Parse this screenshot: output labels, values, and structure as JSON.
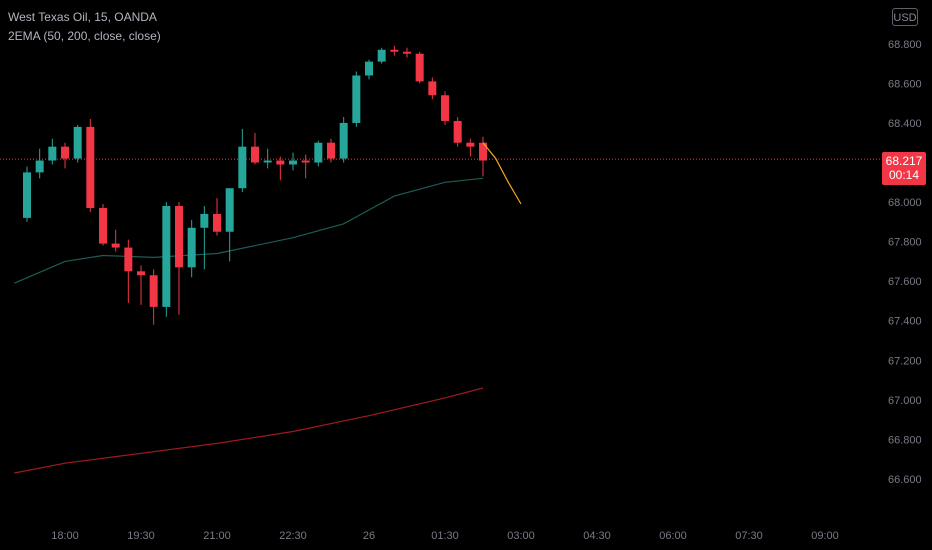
{
  "header": {
    "title": "West Texas Oil, 15, OANDA",
    "indicator": "2EMA (50, 200, close, close)",
    "currency": "USD"
  },
  "last_price": {
    "value": "68.217",
    "countdown": "00:14"
  },
  "colors": {
    "background": "#000000",
    "up": "#26a69a",
    "down": "#f23645",
    "ema50": "#1b5e57",
    "ema200": "#a01a1e",
    "projection": "#f5a623",
    "axis_text": "#787b86"
  },
  "chart_data": {
    "type": "candlestick",
    "y_range": [
      66.5,
      68.95
    ],
    "y_ticks": [
      "68.800",
      "68.600",
      "68.400",
      "68.200",
      "68.000",
      "67.800",
      "67.600",
      "67.400",
      "67.200",
      "67.000",
      "66.800",
      "66.600"
    ],
    "x_ticks": [
      "18:00",
      "19:30",
      "21:00",
      "22:30",
      "26",
      "01:30",
      "03:00",
      "04:30",
      "06:00",
      "07:30",
      "09:00"
    ],
    "candles": [
      {
        "t": "17:15",
        "o": 67.92,
        "h": 68.18,
        "l": 67.9,
        "c": 68.15
      },
      {
        "t": "17:30",
        "o": 68.15,
        "h": 68.27,
        "l": 68.12,
        "c": 68.21
      },
      {
        "t": "17:45",
        "o": 68.21,
        "h": 68.32,
        "l": 68.19,
        "c": 68.28
      },
      {
        "t": "18:00",
        "o": 68.28,
        "h": 68.3,
        "l": 68.17,
        "c": 68.22
      },
      {
        "t": "18:15",
        "o": 68.22,
        "h": 68.39,
        "l": 68.2,
        "c": 68.38
      },
      {
        "t": "18:30",
        "o": 68.38,
        "h": 68.42,
        "l": 67.95,
        "c": 67.97
      },
      {
        "t": "18:45",
        "o": 67.97,
        "h": 67.99,
        "l": 67.78,
        "c": 67.79
      },
      {
        "t": "19:00",
        "o": 67.79,
        "h": 67.86,
        "l": 67.75,
        "c": 67.77
      },
      {
        "t": "19:15",
        "o": 67.77,
        "h": 67.81,
        "l": 67.49,
        "c": 67.65
      },
      {
        "t": "19:30",
        "o": 67.65,
        "h": 67.68,
        "l": 67.48,
        "c": 67.63
      },
      {
        "t": "19:45",
        "o": 67.63,
        "h": 67.66,
        "l": 67.38,
        "c": 67.47
      },
      {
        "t": "20:00",
        "o": 67.47,
        "h": 68.0,
        "l": 67.42,
        "c": 67.98
      },
      {
        "t": "20:15",
        "o": 67.98,
        "h": 68.0,
        "l": 67.43,
        "c": 67.67
      },
      {
        "t": "20:30",
        "o": 67.67,
        "h": 67.91,
        "l": 67.62,
        "c": 67.87
      },
      {
        "t": "20:45",
        "o": 67.87,
        "h": 67.98,
        "l": 67.66,
        "c": 67.94
      },
      {
        "t": "21:00",
        "o": 67.94,
        "h": 68.02,
        "l": 67.83,
        "c": 67.85
      },
      {
        "t": "21:15",
        "o": 67.85,
        "h": 68.07,
        "l": 67.7,
        "c": 68.07
      },
      {
        "t": "21:30",
        "o": 68.07,
        "h": 68.37,
        "l": 68.05,
        "c": 68.28
      },
      {
        "t": "21:45",
        "o": 68.28,
        "h": 68.35,
        "l": 68.19,
        "c": 68.2
      },
      {
        "t": "22:00",
        "o": 68.2,
        "h": 68.27,
        "l": 68.17,
        "c": 68.21
      },
      {
        "t": "22:15",
        "o": 68.21,
        "h": 68.23,
        "l": 68.11,
        "c": 68.19
      },
      {
        "t": "22:30",
        "o": 68.19,
        "h": 68.25,
        "l": 68.16,
        "c": 68.21
      },
      {
        "t": "22:45",
        "o": 68.21,
        "h": 68.24,
        "l": 68.12,
        "c": 68.2
      },
      {
        "t": "23:00",
        "o": 68.2,
        "h": 68.31,
        "l": 68.18,
        "c": 68.3
      },
      {
        "t": "23:15",
        "o": 68.3,
        "h": 68.32,
        "l": 68.2,
        "c": 68.22
      },
      {
        "t": "23:30",
        "o": 68.22,
        "h": 68.43,
        "l": 68.2,
        "c": 68.4
      },
      {
        "t": "23:45",
        "o": 68.4,
        "h": 68.66,
        "l": 68.38,
        "c": 68.64
      },
      {
        "t": "00:00",
        "o": 68.64,
        "h": 68.72,
        "l": 68.62,
        "c": 68.71
      },
      {
        "t": "00:15",
        "o": 68.71,
        "h": 68.78,
        "l": 68.7,
        "c": 68.77
      },
      {
        "t": "00:30",
        "o": 68.77,
        "h": 68.79,
        "l": 68.74,
        "c": 68.76
      },
      {
        "t": "00:45",
        "o": 68.76,
        "h": 68.78,
        "l": 68.73,
        "c": 68.75
      },
      {
        "t": "01:00",
        "o": 68.75,
        "h": 68.76,
        "l": 68.6,
        "c": 68.61
      },
      {
        "t": "01:15",
        "o": 68.61,
        "h": 68.63,
        "l": 68.52,
        "c": 68.54
      },
      {
        "t": "01:30",
        "o": 68.54,
        "h": 68.56,
        "l": 68.39,
        "c": 68.41
      },
      {
        "t": "01:45",
        "o": 68.41,
        "h": 68.43,
        "l": 68.28,
        "c": 68.3
      },
      {
        "t": "02:00",
        "o": 68.3,
        "h": 68.32,
        "l": 68.23,
        "c": 68.28
      },
      {
        "t": "02:15",
        "o": 68.3,
        "h": 68.33,
        "l": 68.13,
        "c": 68.21
      }
    ],
    "ema50": [
      {
        "t": "17:00",
        "v": 67.59
      },
      {
        "t": "18:00",
        "v": 67.7
      },
      {
        "t": "18:45",
        "v": 67.73
      },
      {
        "t": "19:45",
        "v": 67.72
      },
      {
        "t": "21:00",
        "v": 67.74
      },
      {
        "t": "22:30",
        "v": 67.82
      },
      {
        "t": "23:30",
        "v": 67.89
      },
      {
        "t": "00:30",
        "v": 68.03
      },
      {
        "t": "01:30",
        "v": 68.1
      },
      {
        "t": "02:15",
        "v": 68.12
      }
    ],
    "ema200": [
      {
        "t": "17:00",
        "v": 66.63
      },
      {
        "t": "18:00",
        "v": 66.68
      },
      {
        "t": "19:30",
        "v": 66.73
      },
      {
        "t": "21:00",
        "v": 66.78
      },
      {
        "t": "22:30",
        "v": 66.84
      },
      {
        "t": "00:00",
        "v": 66.92
      },
      {
        "t": "01:30",
        "v": 67.01
      },
      {
        "t": "02:15",
        "v": 67.06
      }
    ],
    "projection": [
      {
        "t": "02:15",
        "v": 68.3
      },
      {
        "t": "02:30",
        "v": 68.22
      },
      {
        "t": "02:45",
        "v": 68.1
      },
      {
        "t": "03:00",
        "v": 67.99
      }
    ],
    "last_price": 68.217,
    "grid": false,
    "legend": "top-left"
  }
}
